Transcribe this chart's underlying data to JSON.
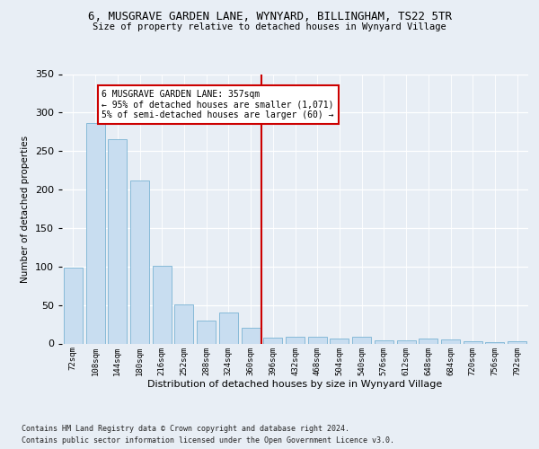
{
  "title1": "6, MUSGRAVE GARDEN LANE, WYNYARD, BILLINGHAM, TS22 5TR",
  "title2": "Size of property relative to detached houses in Wynyard Village",
  "xlabel": "Distribution of detached houses by size in Wynyard Village",
  "ylabel": "Number of detached properties",
  "bar_labels": [
    "72sqm",
    "108sqm",
    "144sqm",
    "180sqm",
    "216sqm",
    "252sqm",
    "288sqm",
    "324sqm",
    "360sqm",
    "396sqm",
    "432sqm",
    "468sqm",
    "504sqm",
    "540sqm",
    "576sqm",
    "612sqm",
    "648sqm",
    "684sqm",
    "720sqm",
    "756sqm",
    "792sqm"
  ],
  "bar_values": [
    99,
    286,
    266,
    212,
    101,
    51,
    30,
    40,
    20,
    8,
    9,
    9,
    7,
    9,
    4,
    4,
    6,
    5,
    3,
    2,
    3
  ],
  "bar_color": "#c8ddf0",
  "bar_edge_color": "#7ab3d4",
  "vline_color": "#cc0000",
  "annotation_text": "6 MUSGRAVE GARDEN LANE: 357sqm\n← 95% of detached houses are smaller (1,071)\n5% of semi-detached houses are larger (60) →",
  "annotation_box_color": "#ffffff",
  "annotation_box_edge": "#cc0000",
  "ylim": [
    0,
    350
  ],
  "yticks": [
    0,
    50,
    100,
    150,
    200,
    250,
    300,
    350
  ],
  "footnote1": "Contains HM Land Registry data © Crown copyright and database right 2024.",
  "footnote2": "Contains public sector information licensed under the Open Government Licence v3.0.",
  "background_color": "#e8eef5",
  "plot_bg_color": "#e8eef5"
}
